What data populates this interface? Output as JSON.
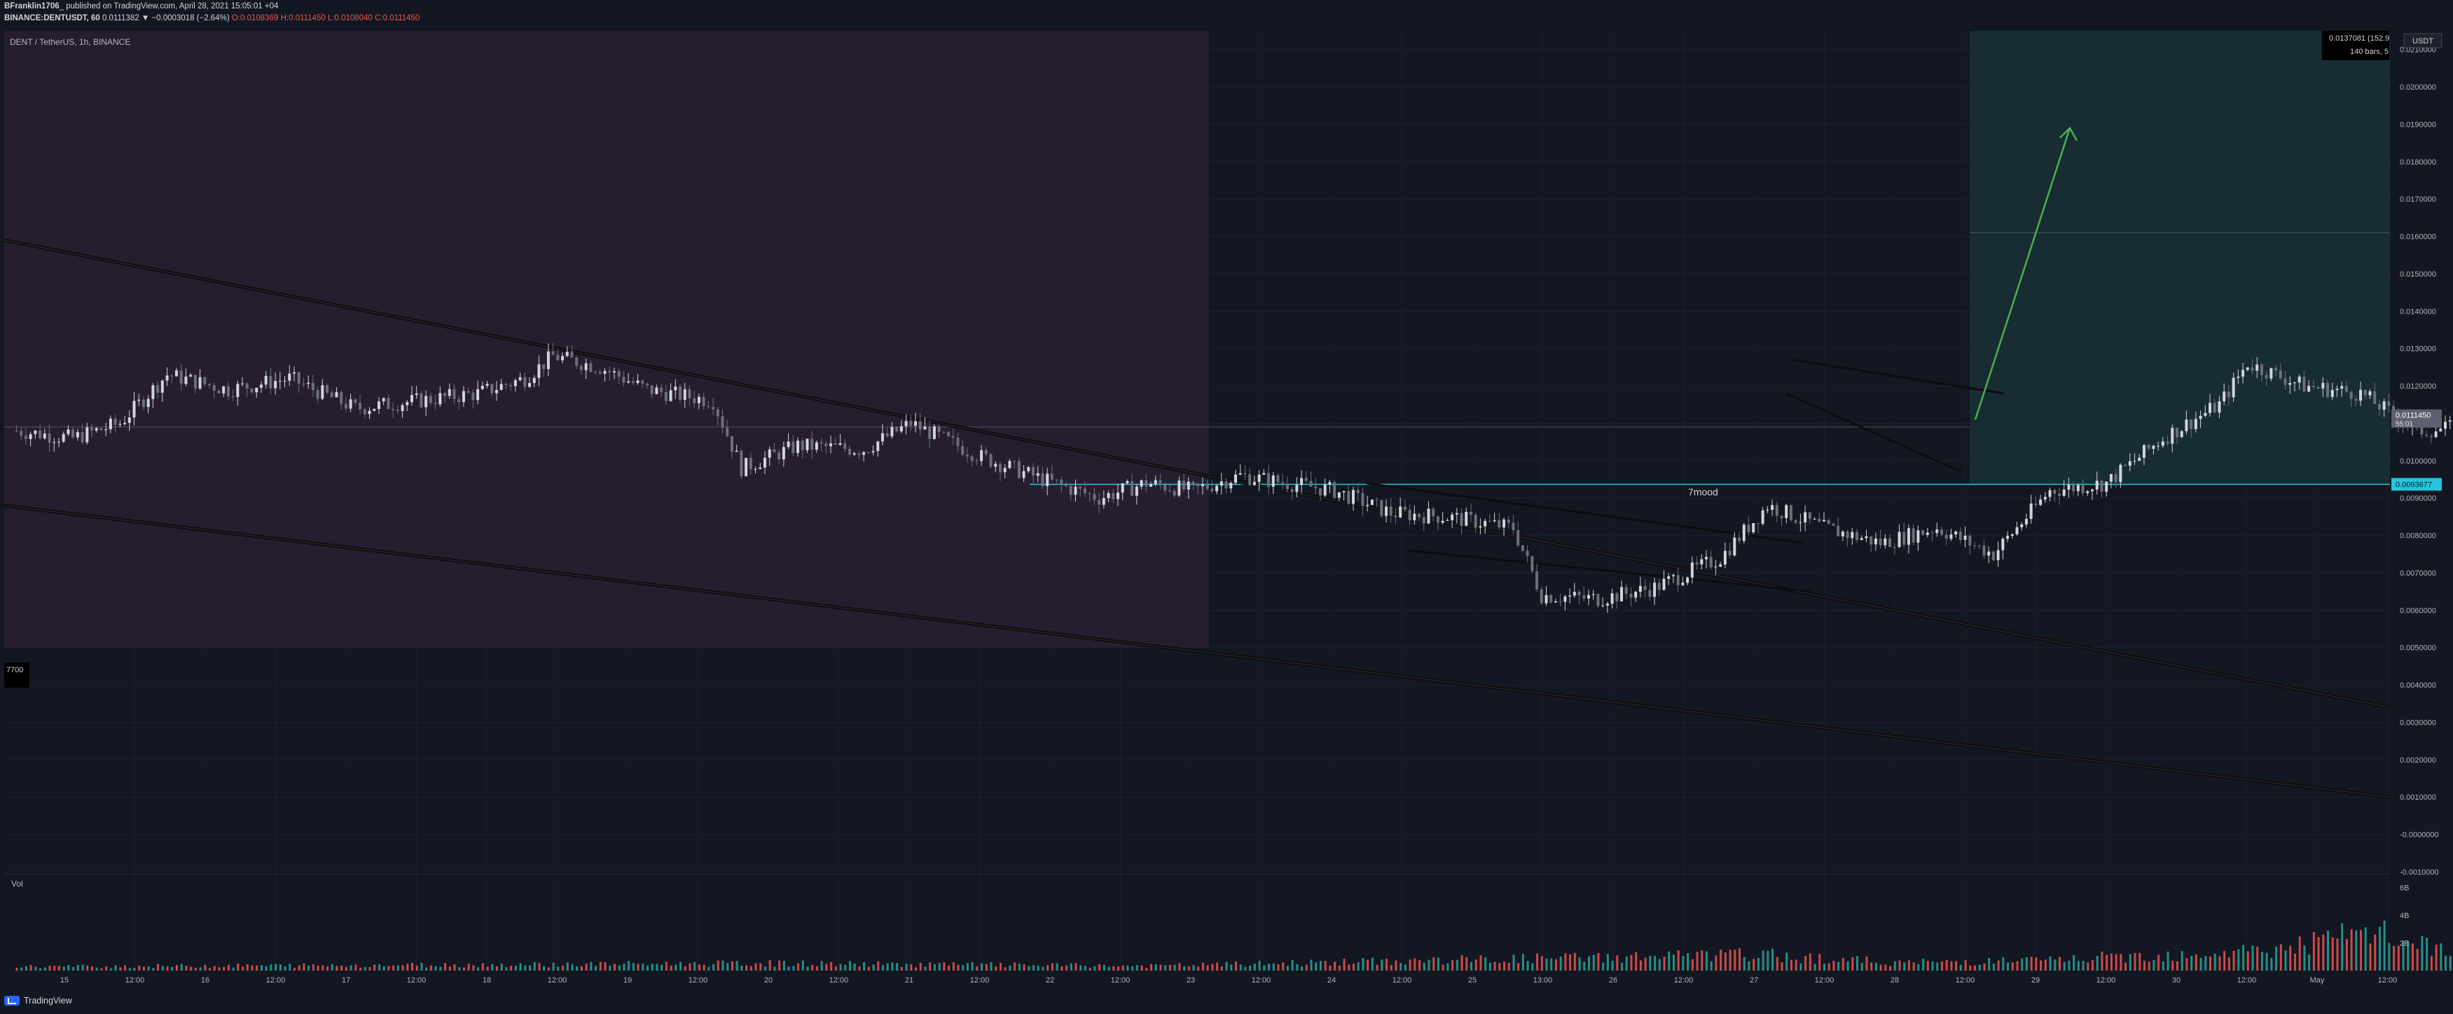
{
  "header": {
    "line1_user": "BFranklin1706",
    "line1_rest": "_ published on TradingView.com, April 28, 2021 15:05:01 +04",
    "line2_prefix": "BINANCE:DENTUSDT, 60",
    "line2_open": "0.0111382",
    "line2_change": "▼ −0.0003018 (−2.64%)",
    "line2_o": "O:0.0108369",
    "line2_h": "H:0.0111450",
    "line2_l": "L:0.0108040",
    "line2_c": "C:0.0111450"
  },
  "chart_title": "DENT / TetherUS, 1h, BINANCE",
  "info_box": {
    "line1": "0.0137081 (152.9",
    "line2": "140 bars, 5"
  },
  "price_axis": {
    "unit": "USDT",
    "ticks": [
      "0.0210000",
      "0.0200000",
      "0.0190000",
      "0.0180000",
      "0.0170000",
      "0.0160000",
      "0.0150000",
      "0.0140000",
      "0.0130000",
      "0.0120000",
      "0.0110000",
      "0.0100000",
      "0.0090000",
      "0.0080000",
      "0.0070000",
      "0.0060000",
      "0.0050000",
      "0.0040000",
      "0.0030000",
      "0.0020000",
      "0.0010000",
      "-0.0000000",
      "-0.0010000"
    ],
    "current_label": "0.0111450",
    "current_sub": "55:01",
    "level_label": "0.0093677"
  },
  "side_label": "7700",
  "annotation": "7mood",
  "time_axis": {
    "ticks": [
      "15",
      "12:00",
      "16",
      "12:00",
      "17",
      "12:00",
      "18",
      "12:00",
      "19",
      "12:00",
      "20",
      "12:00",
      "21",
      "12:00",
      "22",
      "12:00",
      "23",
      "12:00",
      "24",
      "12:00",
      "25",
      "13:00",
      "26",
      "12:00",
      "27",
      "12:00",
      "28",
      "12:00",
      "29",
      "12:00",
      "30",
      "12:00",
      "May",
      "12:00"
    ]
  },
  "volume_panel": {
    "label": "Vol",
    "ticks": [
      "6B",
      "4B",
      "2B"
    ]
  },
  "footer": {
    "brand": "TradingView"
  },
  "colors": {
    "bg": "#131722",
    "up": "#d1d4dc",
    "down": "#6b6f7a",
    "vol_up": "#26a69a",
    "vol_down": "#ef5350",
    "stop_zone": "#2b1f33",
    "target_zone": "#1a2f35",
    "level": "#26c6da",
    "arrow": "#4caf50"
  },
  "chart_data": {
    "type": "candlestick",
    "symbol": "BINANCE:DENTUSDT",
    "interval": "60",
    "ylim": [
      -0.001,
      0.0215
    ],
    "x_range_hours": [
      0,
      432
    ],
    "candles_anchor_points": [
      [
        0,
        0.0108
      ],
      [
        12,
        0.0106
      ],
      [
        22,
        0.011
      ],
      [
        32,
        0.0123
      ],
      [
        45,
        0.0119
      ],
      [
        58,
        0.0122
      ],
      [
        72,
        0.0114
      ],
      [
        85,
        0.0116
      ],
      [
        98,
        0.0118
      ],
      [
        108,
        0.0122
      ],
      [
        114,
        0.0128
      ],
      [
        124,
        0.0125
      ],
      [
        134,
        0.0119
      ],
      [
        148,
        0.0116
      ],
      [
        154,
        0.0098
      ],
      [
        166,
        0.0104
      ],
      [
        180,
        0.0103
      ],
      [
        190,
        0.011
      ],
      [
        205,
        0.0101
      ],
      [
        218,
        0.0095
      ],
      [
        230,
        0.009
      ],
      [
        240,
        0.0094
      ],
      [
        250,
        0.0092
      ],
      [
        260,
        0.0096
      ],
      [
        270,
        0.0094
      ],
      [
        280,
        0.0092
      ],
      [
        292,
        0.0086
      ],
      [
        304,
        0.0085
      ],
      [
        318,
        0.0082
      ],
      [
        324,
        0.0064
      ],
      [
        336,
        0.0063
      ],
      [
        348,
        0.0066
      ],
      [
        362,
        0.0074
      ],
      [
        372,
        0.0088
      ],
      [
        384,
        0.0082
      ],
      [
        396,
        0.0078
      ],
      [
        408,
        0.0082
      ],
      [
        420,
        0.0075
      ],
      [
        432,
        0.0092
      ]
    ],
    "candles_anchor_points_2": [
      [
        0,
        0.0092
      ],
      [
        12,
        0.0094
      ],
      [
        24,
        0.0106
      ],
      [
        36,
        0.0115
      ],
      [
        42,
        0.0126
      ],
      [
        54,
        0.012
      ],
      [
        66,
        0.0118
      ],
      [
        78,
        0.0108
      ],
      [
        90,
        0.0109
      ],
      [
        96,
        0.0112
      ]
    ],
    "volume_anchor_points": [
      [
        0,
        0.3
      ],
      [
        100,
        0.45
      ],
      [
        160,
        0.55
      ],
      [
        240,
        0.35
      ],
      [
        320,
        0.9
      ],
      [
        370,
        1.2
      ],
      [
        400,
        0.6
      ],
      [
        432,
        0.8
      ],
      [
        480,
        1.6
      ],
      [
        500,
        2.9
      ],
      [
        520,
        1.1
      ],
      [
        540,
        0.8
      ],
      [
        560,
        1.3
      ]
    ],
    "long_position": {
      "entry": 0.0093677,
      "target": 0.0215,
      "stop": 0.005
    },
    "horizontal_level": 0.0093677,
    "arrow_target": 0.0189
  }
}
